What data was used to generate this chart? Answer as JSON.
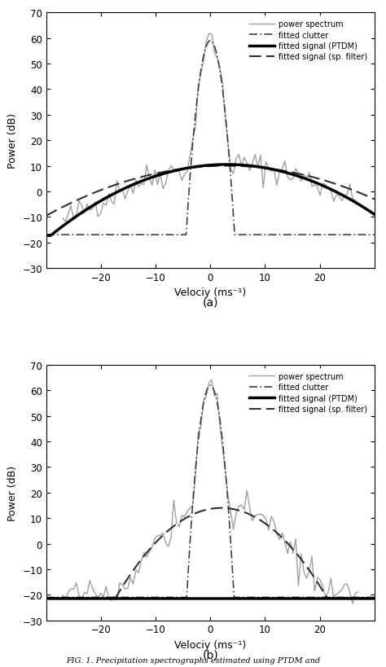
{
  "xlim": [
    -30,
    30
  ],
  "ylim": [
    -30,
    70
  ],
  "yticks": [
    -30,
    -20,
    -10,
    0,
    10,
    20,
    30,
    40,
    50,
    60,
    70
  ],
  "xticks": [
    -20,
    -10,
    0,
    10,
    20
  ],
  "xlabel": "Velociy (ms⁻¹)",
  "ylabel": "Power (dB)",
  "subplot_labels": [
    "(a)",
    "(b)"
  ],
  "legend_labels": [
    "power spectrum",
    "fitted clutter",
    "fitted signal (PTDM)",
    "fitted signal (sp. filter)"
  ],
  "caption": "FIG. 1. Precipitation spectrographs estimated using PTDM and",
  "panel_a": {
    "noise_floor": -17.0,
    "signal_peak": 10.5,
    "signal_mean": 3.0,
    "signal_std": 9.0,
    "clutter_peak": 59.0,
    "clutter_std": 0.75,
    "sp_filter_peak": 10.0,
    "sp_filter_mean": 3.0,
    "sp_filter_std": 11.0,
    "ptdm_is_flat": false,
    "ptdm_flat_level": -17.0,
    "noise_seed": 42,
    "n_noise_pts": 110
  },
  "panel_b": {
    "noise_floor": -21.0,
    "signal_peak": 15.0,
    "signal_mean": 2.0,
    "signal_std": 4.5,
    "clutter_peak": 62.0,
    "clutter_std": 0.7,
    "sp_filter_peak": 14.0,
    "sp_filter_mean": 2.0,
    "sp_filter_std": 4.8,
    "ptdm_is_flat": true,
    "ptdm_flat_level": -21.5,
    "noise_seed": 17,
    "n_noise_pts": 110
  },
  "colors": {
    "power_spectrum": "#a0a0a0",
    "fitted_clutter": "#404040",
    "fitted_signal_ptdm": "#000000",
    "fitted_signal_sp": "#303030"
  },
  "line_widths": {
    "power_spectrum": 1.0,
    "fitted_clutter": 1.2,
    "fitted_signal_ptdm": 2.5,
    "fitted_signal_sp": 1.5
  }
}
